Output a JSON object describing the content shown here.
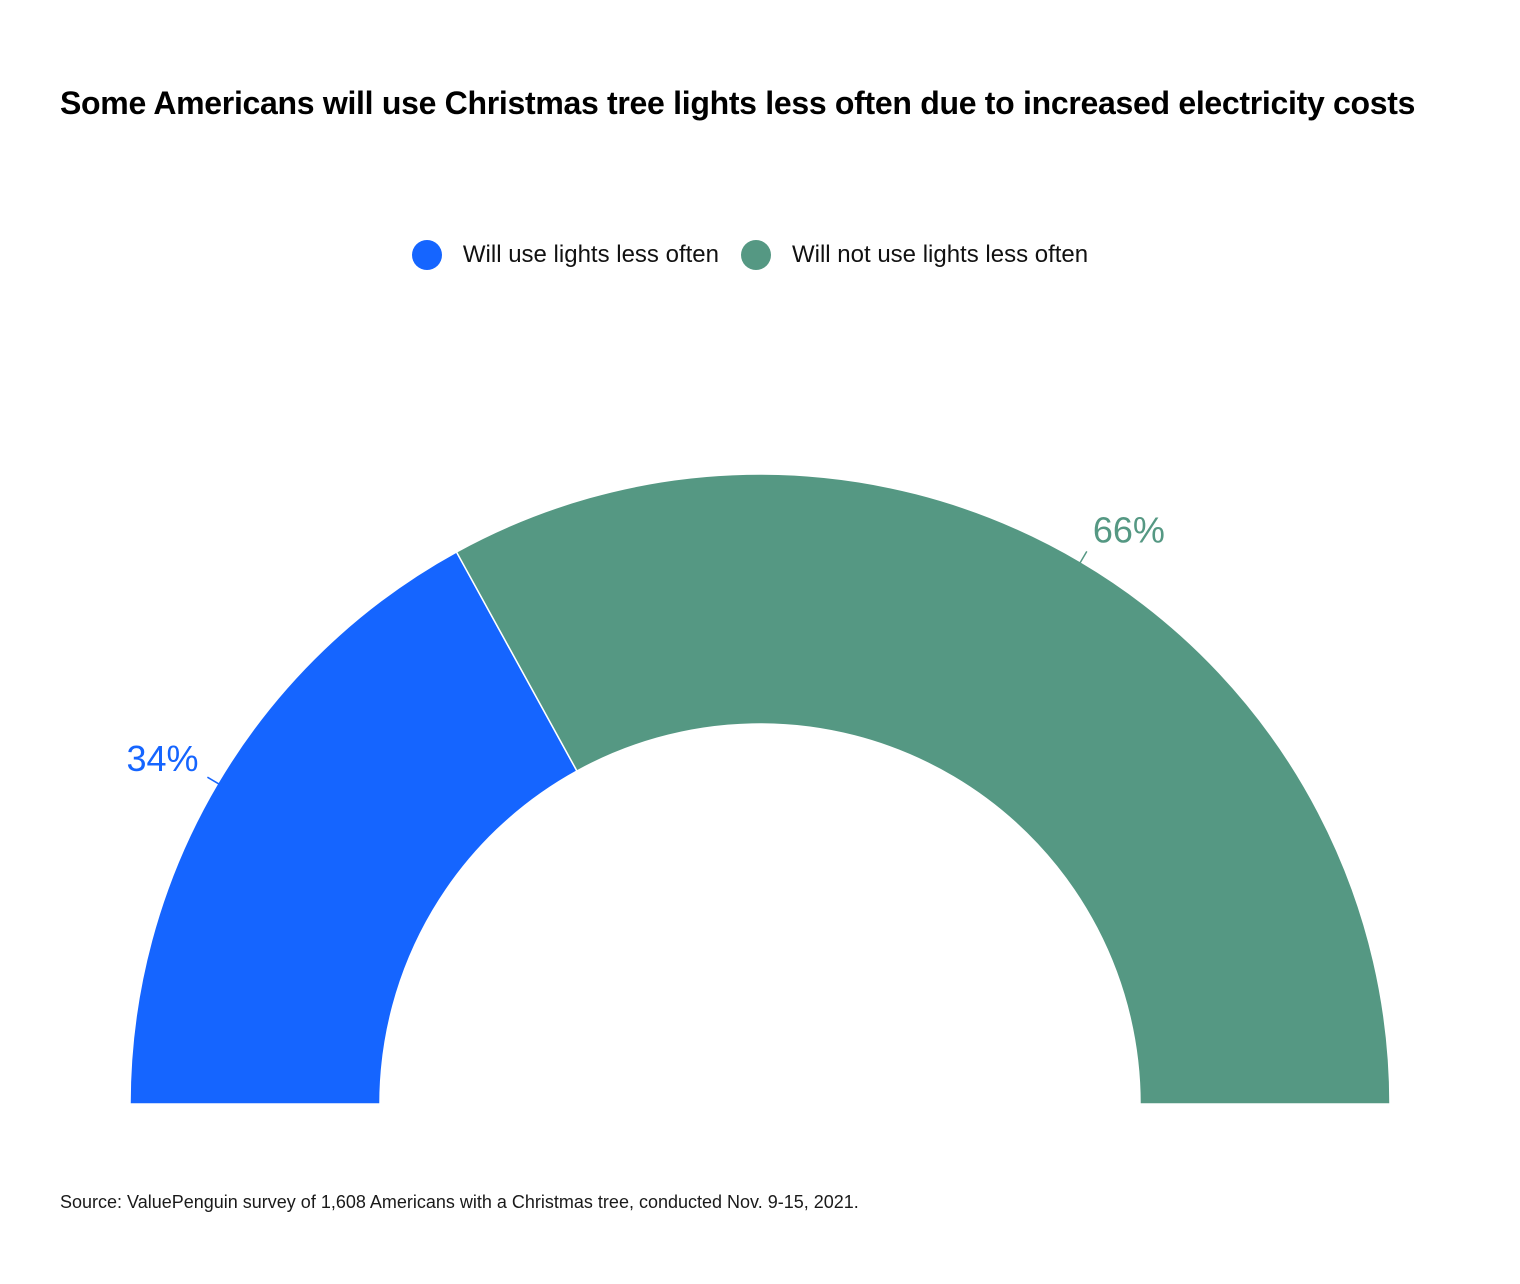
{
  "title": "Some Americans will use Christmas tree lights less often due to increased electricity costs",
  "legend": [
    {
      "label": "Will use lights less often",
      "color": "#1565ff"
    },
    {
      "label": "Will not use lights less often",
      "color": "#559883"
    }
  ],
  "chart_data": {
    "type": "pie",
    "variant": "half-donut",
    "title": "Some Americans will use Christmas tree lights less often due to increased electricity costs",
    "series": [
      {
        "name": "Will use lights less often",
        "value": 34,
        "label": "34%",
        "color": "#1565ff"
      },
      {
        "name": "Will not use lights less often",
        "value": 66,
        "label": "66%",
        "color": "#559883"
      }
    ],
    "unit": "%",
    "legend_position": "top-center"
  },
  "source": "Source: ValuePenguin survey of 1,608 Americans with a Christmas tree, conducted Nov. 9-15, 2021."
}
